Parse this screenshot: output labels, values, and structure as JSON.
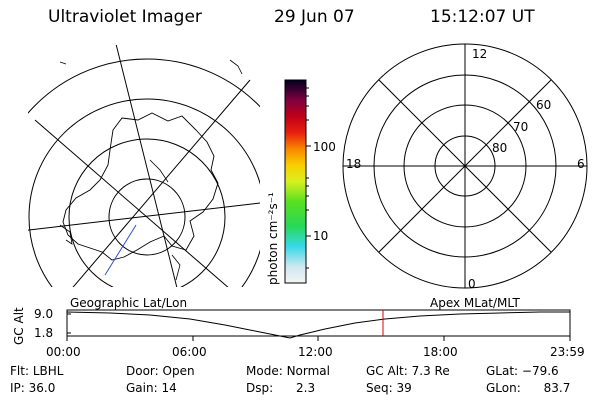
{
  "header": {
    "instrument": "Ultraviolet Imager",
    "date": "29 Jun 07",
    "time": "15:12:07 UT"
  },
  "colorbar": {
    "unit": "photon cm⁻²s⁻¹",
    "ticks": [
      {
        "label": "100",
        "value": 100
      },
      {
        "label": "10",
        "value": 10
      }
    ]
  },
  "right_plot": {
    "mlt_labels": {
      "top": "12",
      "bottom": "0",
      "left": "18",
      "right": "6"
    },
    "lat_labels": [
      "60",
      "70",
      "80"
    ]
  },
  "timeline": {
    "left_title": "Geographic Lat/Lon",
    "right_title": "Apex MLat/MLT",
    "ylabel": "GC Alt",
    "ytick_top": "9.0",
    "ytick_bottom": "1.8",
    "xticks": [
      "00:00",
      "06:00",
      "12:00",
      "18:00",
      "23:59"
    ],
    "marker_color": "#e00000"
  },
  "info": {
    "row1": [
      {
        "label": "Flt:",
        "value": "LBHL"
      },
      {
        "label": "Door:",
        "value": "Open"
      },
      {
        "label": "Mode:",
        "value": "Normal"
      },
      {
        "label": "GC Alt:",
        "value": "7.3 Re"
      },
      {
        "label": "GLat:",
        "value": "−79.6"
      }
    ],
    "row2": [
      {
        "label": "IP:",
        "value": "36.0"
      },
      {
        "label": "Gain:",
        "value": "14"
      },
      {
        "label": "Dsp:",
        "value": "2.3"
      },
      {
        "label": "Seq:",
        "value": "39"
      },
      {
        "label": "GLon:",
        "value": "83.7"
      }
    ]
  }
}
